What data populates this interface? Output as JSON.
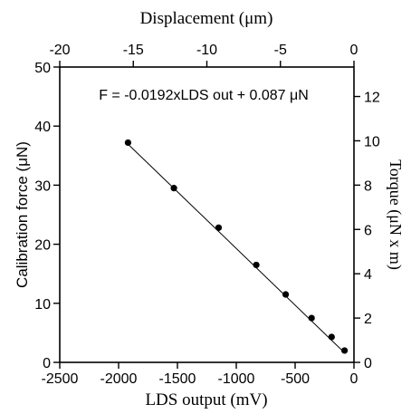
{
  "chart_data": {
    "type": "scatter",
    "title": "",
    "annotation": "F = -0.0192xLDS out + 0.087 μN",
    "xlabel": "LDS output (mV)",
    "ylabel": "Calibration force (μN)",
    "x2label": "Displacement (μm)",
    "y2label": "Torque (μN x m)",
    "xlim": [
      -2500,
      0
    ],
    "ylim": [
      0,
      50
    ],
    "x2lim": [
      -20,
      0
    ],
    "y2lim": [
      0,
      13.33
    ],
    "xticks": [
      -2500,
      -2000,
      -1500,
      -1000,
      -500,
      0
    ],
    "yticks": [
      0,
      10,
      20,
      30,
      40,
      50
    ],
    "x2ticks": [
      -20,
      -15,
      -10,
      -5,
      0
    ],
    "y2ticks": [
      0,
      2,
      4,
      6,
      8,
      10,
      12
    ],
    "grid": false,
    "legend": "none",
    "series": [
      {
        "marker": "filled-circle",
        "x": [
          -1920,
          -1530,
          -1150,
          -830,
          -580,
          -360,
          -190,
          -80
        ],
        "y": [
          37.2,
          29.5,
          22.8,
          16.5,
          11.5,
          7.5,
          4.3,
          2.0
        ]
      }
    ],
    "fit_line": {
      "slope": -0.0192,
      "intercept": 0.087,
      "x_range": [
        -1920,
        -80
      ]
    }
  }
}
